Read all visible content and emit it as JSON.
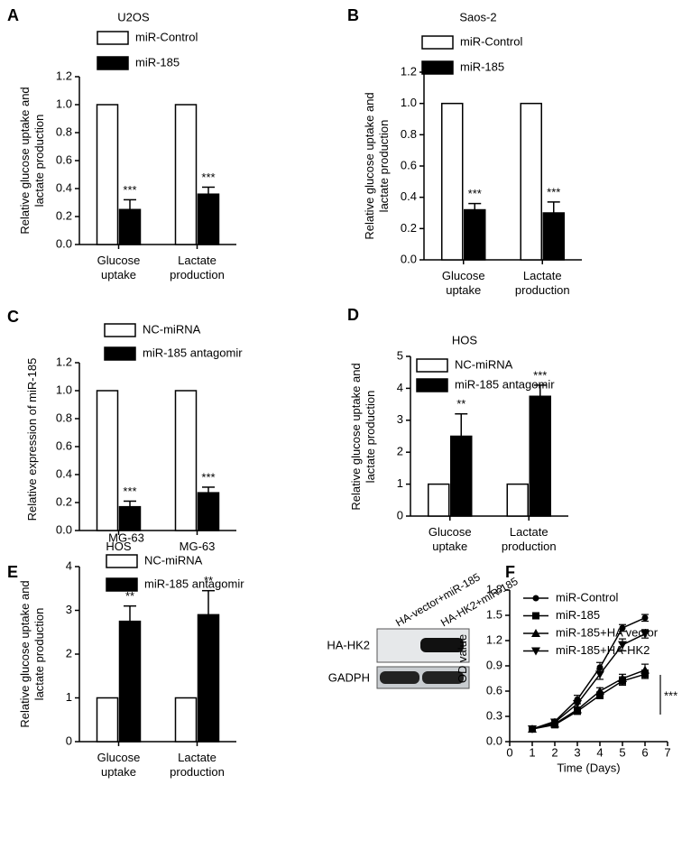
{
  "chart_data": [
    {
      "type": "bar",
      "panel": "A",
      "title": "U2OS",
      "ylabel": "Relative glucose uptake and lactate production",
      "categories": [
        "Glucose uptake",
        "Lactate production"
      ],
      "series": [
        {
          "name": "miR-Control",
          "color": "#ffffff",
          "values": [
            1,
            1
          ]
        },
        {
          "name": "miR-185",
          "color": "#000000",
          "values": [
            0.25,
            0.36
          ],
          "errors": [
            0.07,
            0.05
          ],
          "significance": [
            "***",
            "***"
          ]
        }
      ],
      "ylim": [
        0,
        1.2
      ],
      "yticks": [
        {
          "value": 0,
          "label": "0.0"
        },
        0.2,
        0.4,
        0.6,
        0.8,
        {
          "value": 1,
          "label": "1.0"
        },
        1.2
      ]
    },
    {
      "type": "bar",
      "panel": "B",
      "title": "Saos-2",
      "ylabel": "Relative glucose uptake and lactate production",
      "categories": [
        "Glucose uptake",
        "Lactate production"
      ],
      "series": [
        {
          "name": "miR-Control",
          "color": "#ffffff",
          "values": [
            1,
            1
          ]
        },
        {
          "name": "miR-185",
          "color": "#000000",
          "values": [
            0.32,
            0.3
          ],
          "errors": [
            0.04,
            0.07
          ],
          "significance": [
            "***",
            "***"
          ]
        }
      ],
      "ylim": [
        0,
        1.2
      ],
      "yticks": [
        {
          "value": 0,
          "label": "0.0"
        },
        0.2,
        0.4,
        0.6,
        0.8,
        {
          "value": 1,
          "label": "1.0"
        },
        1.2
      ]
    },
    {
      "type": "bar",
      "panel": "C",
      "ylabel": "Relative expression of miR-185",
      "categories": [
        "HOS",
        "MG-63"
      ],
      "series": [
        {
          "name": "NC-miRNA",
          "color": "#ffffff",
          "values": [
            1,
            1
          ]
        },
        {
          "name": "miR-185 antagomir",
          "color": "#000000",
          "values": [
            0.17,
            0.27
          ],
          "errors": [
            0.04,
            0.04
          ],
          "significance": [
            "***",
            "***"
          ]
        }
      ],
      "ylim": [
        0,
        1.2
      ],
      "yticks": [
        {
          "value": 0,
          "label": "0.0"
        },
        0.2,
        0.4,
        0.6,
        0.8,
        {
          "value": 1,
          "label": "1.0"
        },
        1.2
      ]
    },
    {
      "type": "bar",
      "panel": "D",
      "title": "HOS",
      "ylabel": "Relative glucose uptake and lactate production",
      "categories": [
        "Glucose uptake",
        "Lactate production"
      ],
      "series": [
        {
          "name": "NC-miRNA",
          "color": "#ffffff",
          "values": [
            1,
            1
          ]
        },
        {
          "name": "miR-185 antagomir",
          "color": "#000000",
          "values": [
            2.5,
            3.75
          ],
          "errors": [
            0.7,
            0.35
          ],
          "significance": [
            "**",
            "***"
          ]
        }
      ],
      "ylim": [
        0,
        5
      ],
      "yticks": [
        0,
        1,
        2,
        3,
        4,
        5
      ]
    },
    {
      "type": "bar",
      "panel": "E",
      "title": "MG-63",
      "ylabel": "Relative glucose uptake and lactate production",
      "categories": [
        "Glucose uptake",
        "Lactate production"
      ],
      "series": [
        {
          "name": "NC-miRNA",
          "color": "#ffffff",
          "values": [
            1,
            1
          ]
        },
        {
          "name": "miR-185 antagomir",
          "color": "#000000",
          "values": [
            2.75,
            2.9
          ],
          "errors": [
            0.35,
            0.55
          ],
          "significance": [
            "**",
            "**"
          ]
        }
      ],
      "ylim": [
        0,
        4
      ],
      "yticks": [
        0,
        1,
        2,
        3,
        4
      ]
    },
    {
      "type": "line",
      "panel": "F",
      "xlabel": "Time (Days)",
      "ylabel": "OD value",
      "blot": {
        "lanes": [
          "HA-vector+miR-185",
          "HA-HK2+miR-185"
        ],
        "rows": [
          "HA-HK2",
          "GADPH"
        ]
      },
      "x": [
        1,
        2,
        3,
        4,
        5,
        6
      ],
      "series": [
        {
          "name": "miR-Control",
          "color": "#000000",
          "marker": "circle",
          "values": [
            0.15,
            0.24,
            0.5,
            0.88,
            1.35,
            1.47
          ],
          "errors": [
            0.02,
            0.02,
            0.05,
            0.06,
            0.04,
            0.04
          ]
        },
        {
          "name": "miR-185",
          "color": "#000000",
          "marker": "square",
          "values": [
            0.15,
            0.2,
            0.36,
            0.55,
            0.72,
            0.8
          ],
          "errors": [
            0.02,
            0.02,
            0.03,
            0.04,
            0.05,
            0.05
          ]
        },
        {
          "name": "miR-185+HA vector",
          "color": "#000000",
          "marker": "triangle-up",
          "values": [
            0.15,
            0.21,
            0.38,
            0.6,
            0.75,
            0.85
          ],
          "errors": [
            0.02,
            0.02,
            0.03,
            0.04,
            0.05,
            0.07
          ]
        },
        {
          "name": "miR-185+HA-HK2",
          "color": "#000000",
          "marker": "triangle-down",
          "values": [
            0.15,
            0.23,
            0.45,
            0.8,
            1.15,
            1.28
          ],
          "errors": [
            0.02,
            0.02,
            0.04,
            0.06,
            0.07,
            0.05
          ]
        }
      ],
      "annotation": "***",
      "xlim": [
        0,
        7
      ],
      "xticks": [
        0,
        1,
        2,
        3,
        4,
        5,
        6,
        7
      ],
      "ylim": [
        0,
        1.8
      ],
      "yticks": [
        {
          "value": 0,
          "label": "0.0"
        },
        0.3,
        0.6,
        0.9,
        1.2,
        1.5,
        1.8
      ]
    }
  ]
}
